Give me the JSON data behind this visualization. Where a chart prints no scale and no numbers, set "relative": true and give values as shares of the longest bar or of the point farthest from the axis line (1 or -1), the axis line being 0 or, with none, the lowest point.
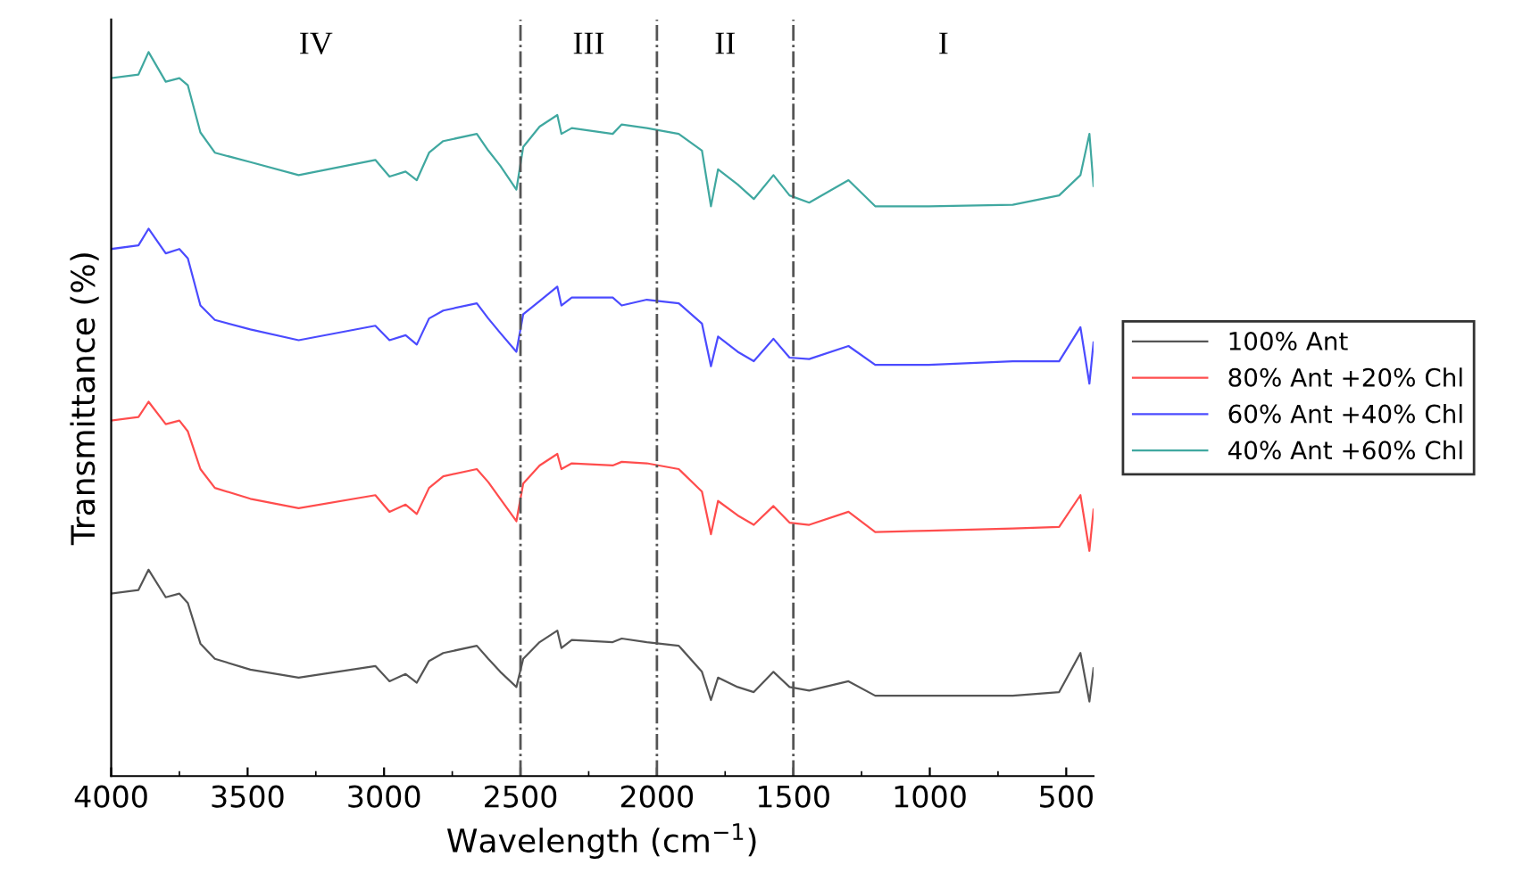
{
  "chart_data": {
    "type": "line",
    "relative": true,
    "xlabel": "Wavelength (cm$^{−1}$)",
    "ylabel": "Transmittance (%)",
    "xlim": [
      4000,
      400
    ],
    "xticks": [
      4000,
      3500,
      3000,
      2500,
      2000,
      1500,
      1000,
      500
    ],
    "x": [
      4000,
      3900,
      3863,
      3800,
      3750,
      3719,
      3673,
      3620,
      3490,
      3313,
      3032,
      2980,
      2921,
      2880,
      2835,
      2783,
      2660,
      2618,
      2574,
      2515,
      2490,
      2430,
      2365,
      2350,
      2312,
      2162,
      2129,
      2037,
      1920,
      1835,
      1802,
      1776,
      1704,
      1645,
      1573,
      1514,
      1442,
      1298,
      1200,
      1004,
      696,
      526,
      448,
      415,
      400
    ],
    "series": [
      {
        "name": "100% Ant",
        "color": "#555555",
        "values": [
          0.252,
          0.257,
          0.285,
          0.247,
          0.252,
          0.239,
          0.183,
          0.162,
          0.147,
          0.136,
          0.152,
          0.131,
          0.141,
          0.129,
          0.159,
          0.17,
          0.18,
          0.162,
          0.144,
          0.123,
          0.162,
          0.185,
          0.201,
          0.177,
          0.188,
          0.185,
          0.19,
          0.185,
          0.18,
          0.144,
          0.105,
          0.136,
          0.123,
          0.116,
          0.144,
          0.123,
          0.118,
          0.131,
          0.111,
          0.111,
          0.111,
          0.116,
          0.17,
          0.103,
          0.149
        ]
      },
      {
        "name": "80% Ant +20% Chl",
        "color": "#ff4d4d",
        "values": [
          0.491,
          0.496,
          0.517,
          0.486,
          0.491,
          0.476,
          0.424,
          0.398,
          0.383,
          0.37,
          0.388,
          0.365,
          0.375,
          0.362,
          0.398,
          0.414,
          0.424,
          0.406,
          0.383,
          0.352,
          0.404,
          0.429,
          0.445,
          0.424,
          0.432,
          0.429,
          0.434,
          0.432,
          0.424,
          0.393,
          0.334,
          0.38,
          0.36,
          0.347,
          0.373,
          0.35,
          0.347,
          0.365,
          0.337,
          0.339,
          0.342,
          0.344,
          0.388,
          0.311,
          0.368
        ]
      },
      {
        "name": "60% Ant +40% Chl",
        "color": "#4b4bff",
        "values": [
          0.728,
          0.733,
          0.756,
          0.722,
          0.728,
          0.715,
          0.65,
          0.63,
          0.617,
          0.602,
          0.622,
          0.602,
          0.609,
          0.596,
          0.632,
          0.643,
          0.653,
          0.632,
          0.612,
          0.586,
          0.638,
          0.656,
          0.676,
          0.65,
          0.661,
          0.661,
          0.65,
          0.658,
          0.653,
          0.625,
          0.566,
          0.607,
          0.586,
          0.573,
          0.604,
          0.578,
          0.576,
          0.594,
          0.568,
          0.568,
          0.573,
          0.573,
          0.62,
          0.542,
          0.599
        ]
      },
      {
        "name": "40% Ant +60% Chl",
        "color": "#40a8a0",
        "values": [
          0.964,
          0.969,
          1.0,
          0.959,
          0.964,
          0.954,
          0.889,
          0.861,
          0.848,
          0.83,
          0.851,
          0.828,
          0.835,
          0.823,
          0.861,
          0.877,
          0.887,
          0.864,
          0.843,
          0.81,
          0.869,
          0.897,
          0.913,
          0.887,
          0.895,
          0.887,
          0.9,
          0.895,
          0.887,
          0.864,
          0.787,
          0.838,
          0.817,
          0.797,
          0.83,
          0.802,
          0.792,
          0.823,
          0.787,
          0.787,
          0.789,
          0.802,
          0.83,
          0.887,
          0.815
        ]
      }
    ],
    "ref_lines": [
      {
        "axis": "x",
        "value": 2500,
        "line_style": "dashdot",
        "color": "#555555"
      },
      {
        "axis": "x",
        "value": 2000,
        "line_style": "dashdot",
        "color": "#555555"
      },
      {
        "axis": "x",
        "value": 1500,
        "line_style": "dashdot",
        "color": "#555555"
      }
    ],
    "annotations": [
      "IV",
      "III",
      "II",
      "I"
    ],
    "legend": "right",
    "grid": false
  }
}
